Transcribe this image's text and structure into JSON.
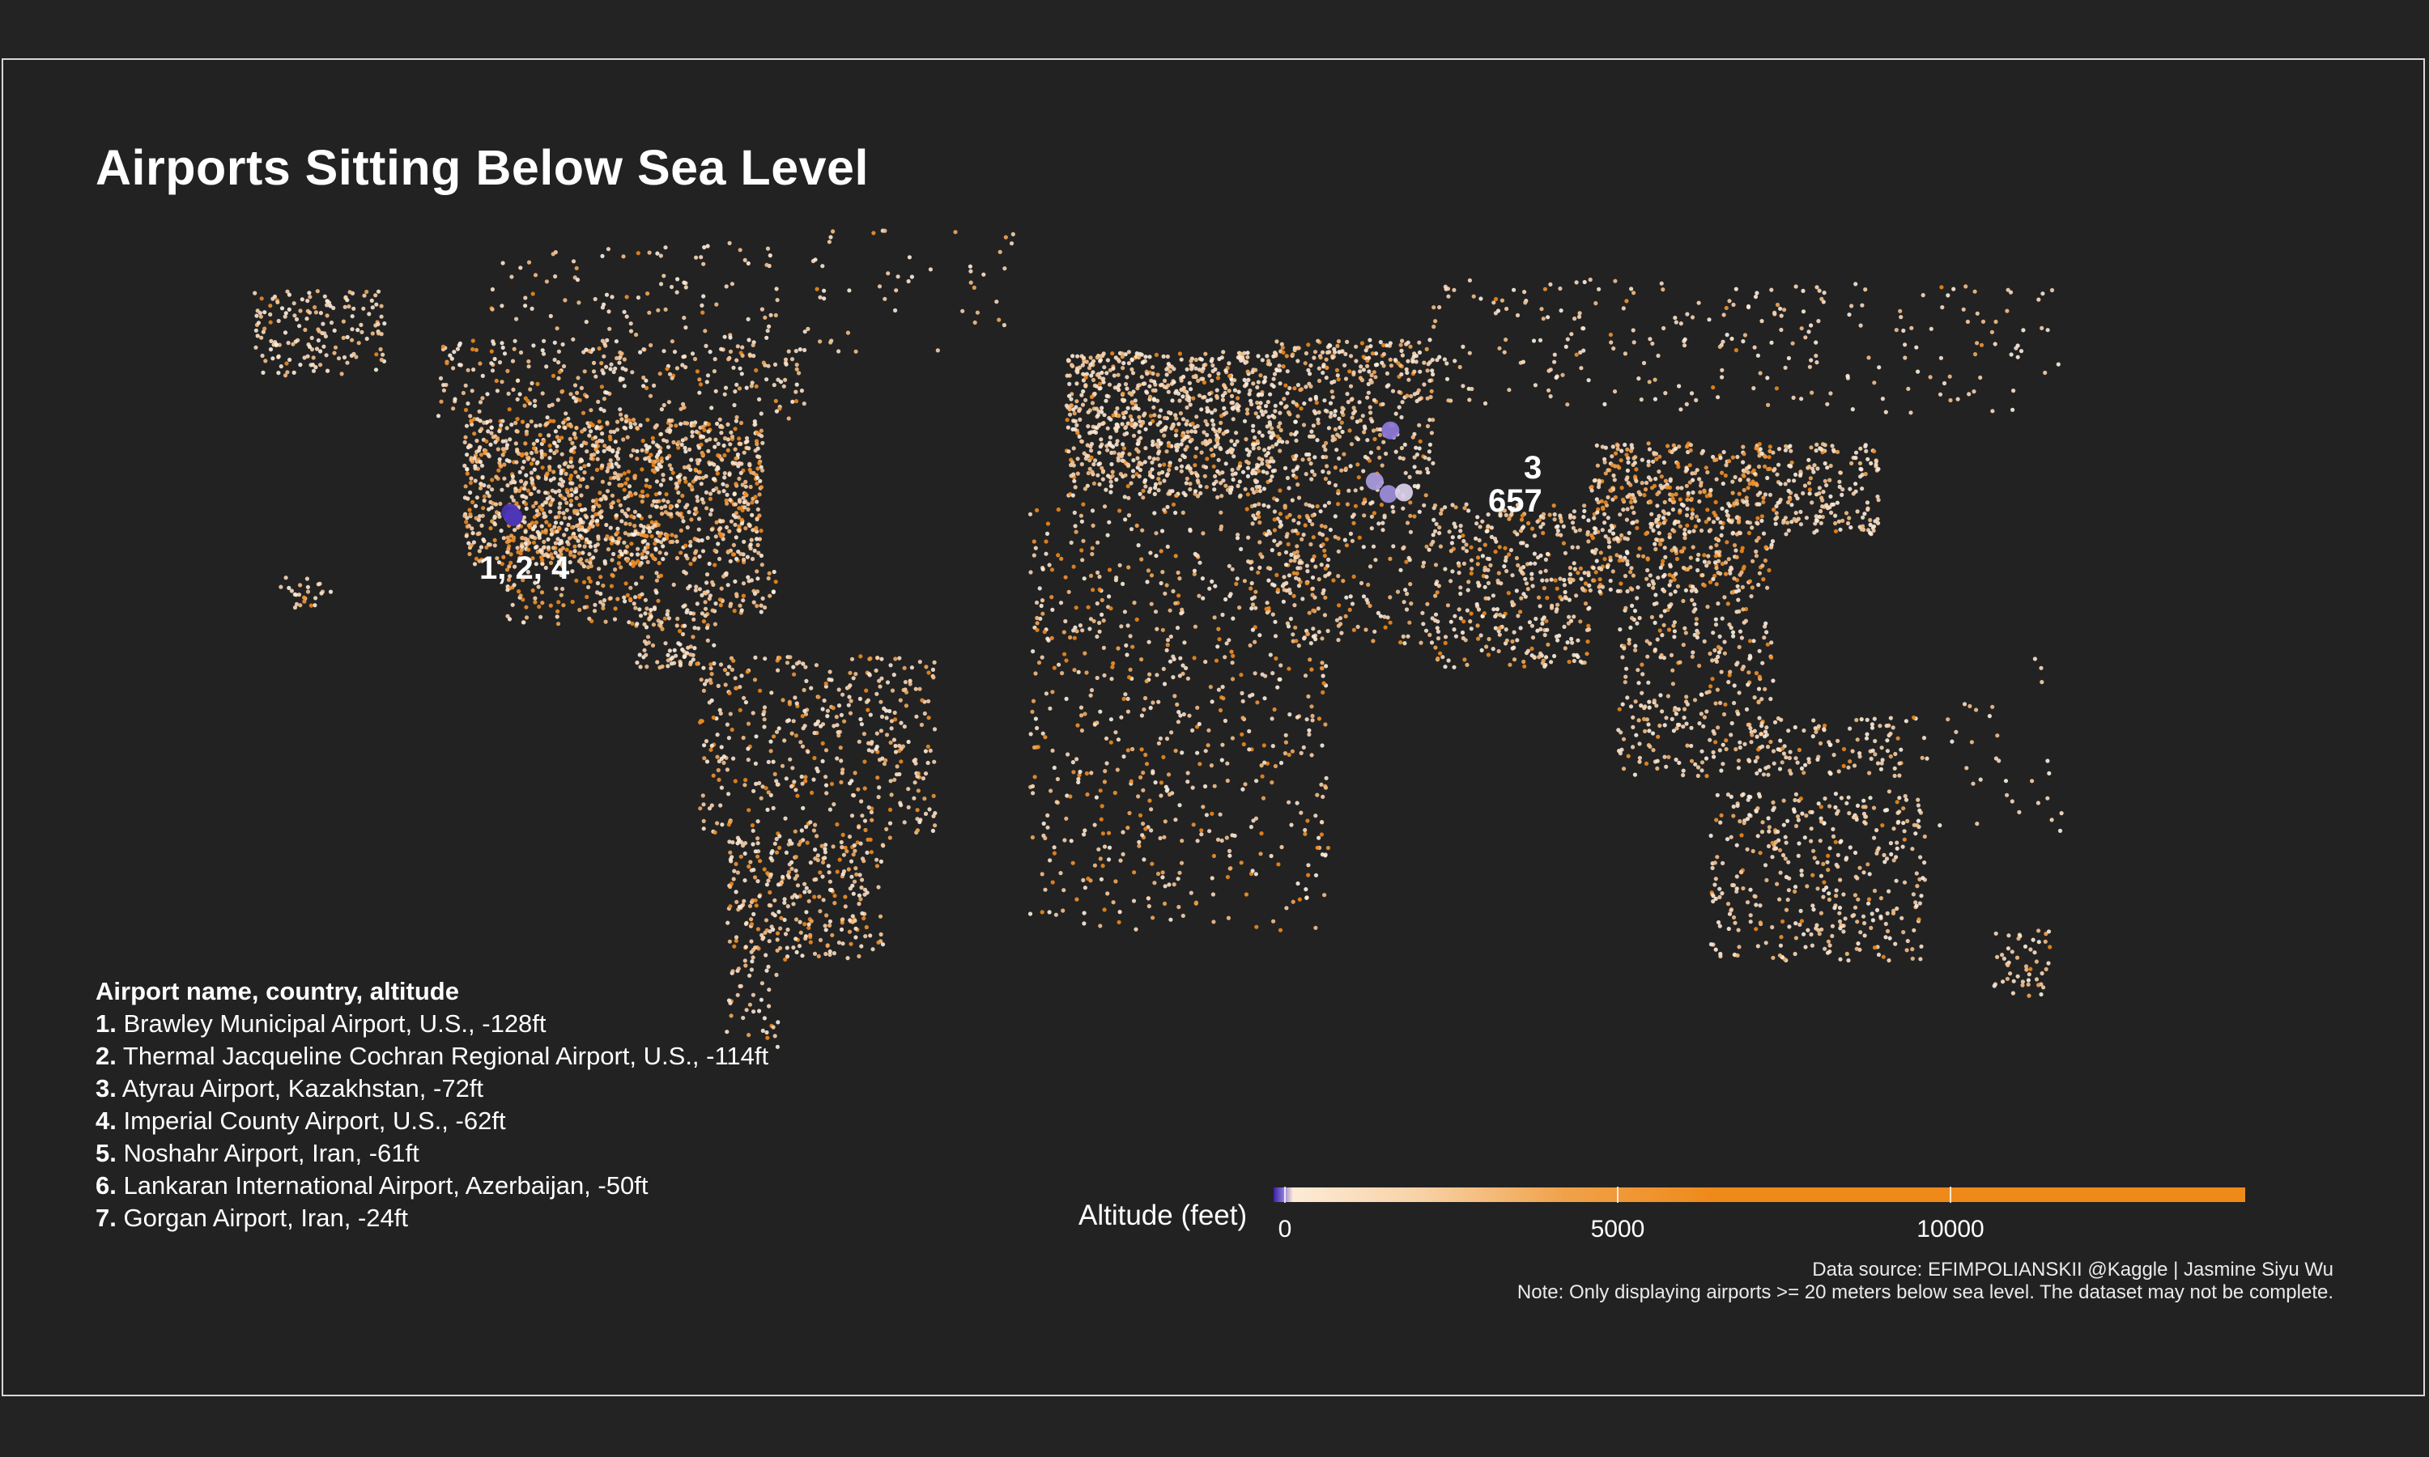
{
  "title": "Airports Sitting Below Sea Level",
  "legend": {
    "header": "Airport name, country, altitude",
    "items": [
      {
        "num": "1.",
        "text": "Brawley Municipal Airport, U.S., -128ft"
      },
      {
        "num": "2.",
        "text": "Thermal Jacqueline Cochran Regional Airport, U.S., -114ft"
      },
      {
        "num": "3.",
        "text": "Atyrau Airport, Kazakhstan, -72ft"
      },
      {
        "num": "4.",
        "text": "Imperial County Airport, U.S., -62ft"
      },
      {
        "num": "5.",
        "text": "Noshahr Airport, Iran, -61ft"
      },
      {
        "num": "6.",
        "text": "Lankaran International Airport, Azerbaijan, -50ft"
      },
      {
        "num": "7.",
        "text": "Gorgan Airport, Iran, -24ft"
      }
    ]
  },
  "map_labels": {
    "california": "1, 2, 4",
    "atyrau": "3",
    "caspian": "657"
  },
  "colorbar": {
    "title": "Altitude (feet)",
    "ticks": [
      "0",
      "5000",
      "10000"
    ],
    "colors": {
      "low": "#3a1fa8",
      "mid": "#fdebd6",
      "high": "#ef8a1a"
    }
  },
  "credit": {
    "source": "Data source: EFIMPOLIANSKII @Kaggle | Jasmine Siyu Wu",
    "note": "Note: Only displaying airports >= 20 meters below sea level. The dataset may not be complete."
  },
  "highlighted_airports": [
    {
      "id": 1,
      "lon": -115.5,
      "lat": 32.98,
      "altitude_ft": -128
    },
    {
      "id": 2,
      "lon": -116.16,
      "lat": 33.63,
      "altitude_ft": -114
    },
    {
      "id": 3,
      "lon": 51.82,
      "lat": 47.12,
      "altitude_ft": -72
    },
    {
      "id": 4,
      "lon": -115.58,
      "lat": 32.83,
      "altitude_ft": -62
    },
    {
      "id": 5,
      "lon": 51.46,
      "lat": 36.66,
      "altitude_ft": -61
    },
    {
      "id": 6,
      "lon": 48.82,
      "lat": 38.75,
      "altitude_ft": -50
    },
    {
      "id": 7,
      "lon": 54.4,
      "lat": 36.91,
      "altitude_ft": -24
    }
  ]
}
